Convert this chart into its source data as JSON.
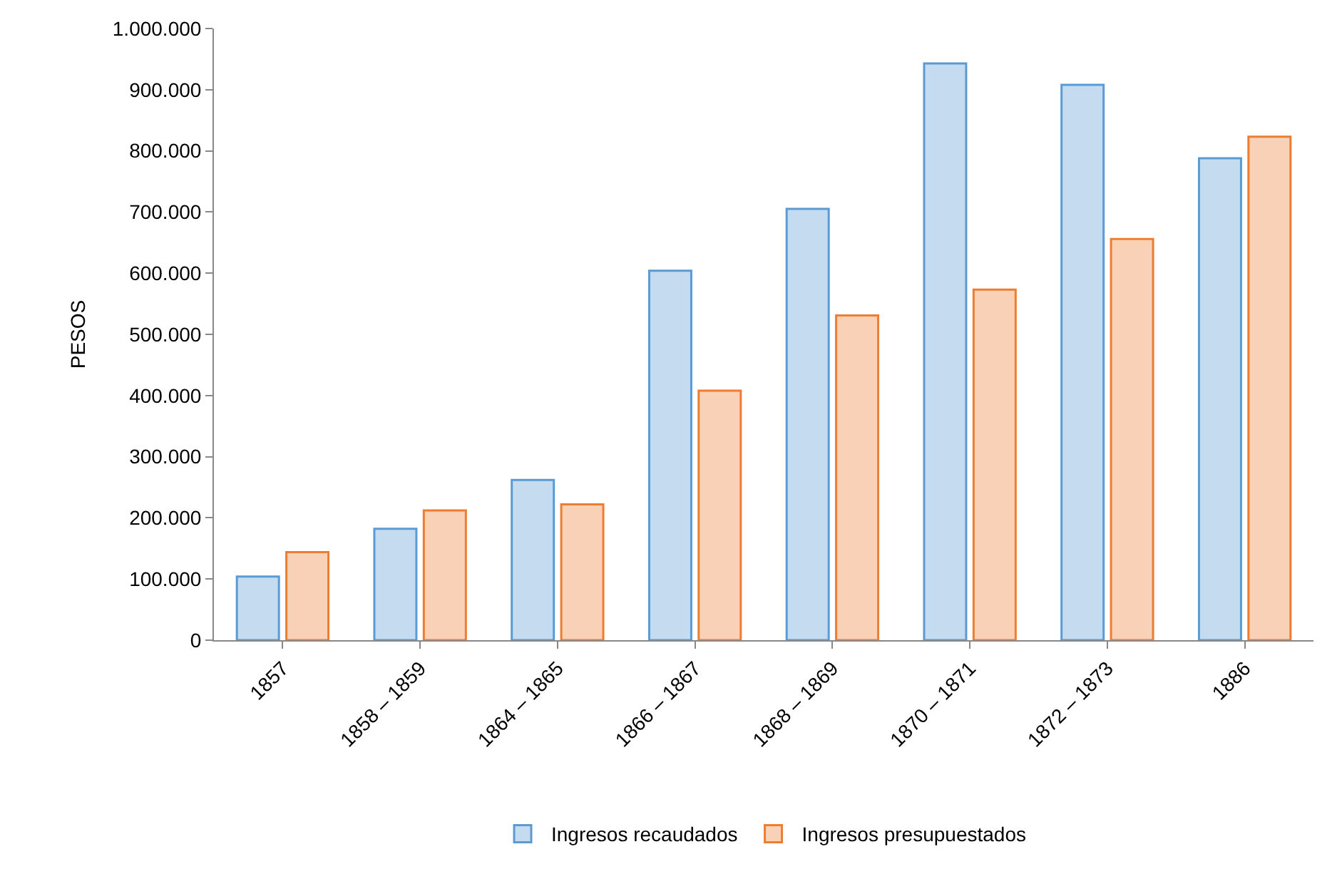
{
  "chart_data": {
    "type": "bar",
    "ylabel": "PESOS",
    "categories": [
      "1857",
      "1858 – 1859",
      "1864 – 1865",
      "1866 – 1867",
      "1868 – 1869",
      "1870 – 1871",
      "1872 – 1873",
      "1886"
    ],
    "series": [
      {
        "name": "Ingresos recaudados",
        "color": "#5b9bd5",
        "values": [
          104000,
          182000,
          262000,
          604000,
          705000,
          943000,
          908000,
          788000
        ]
      },
      {
        "name": "Ingresos presupuestados",
        "color": "#ed7d31",
        "values": [
          144000,
          212000,
          222000,
          408000,
          531000,
          573000,
          656000,
          823000
        ]
      }
    ],
    "ylim": [
      0,
      1000000
    ],
    "yticks": [
      0,
      {
        "value": 100000,
        "label": "100.000"
      },
      {
        "value": 200000,
        "label": "200.000"
      },
      {
        "value": 300000,
        "label": "300.000"
      },
      {
        "value": 400000,
        "label": "400.000"
      },
      {
        "value": 500000,
        "label": "500.000"
      },
      {
        "value": 600000,
        "label": "600.000"
      },
      {
        "value": 700000,
        "label": "700.000"
      },
      {
        "value": 800000,
        "label": "800.000"
      },
      {
        "value": 900000,
        "label": "900.000"
      },
      {
        "value": 1000000,
        "label": "1.000.000"
      }
    ],
    "legend": "bottom"
  }
}
